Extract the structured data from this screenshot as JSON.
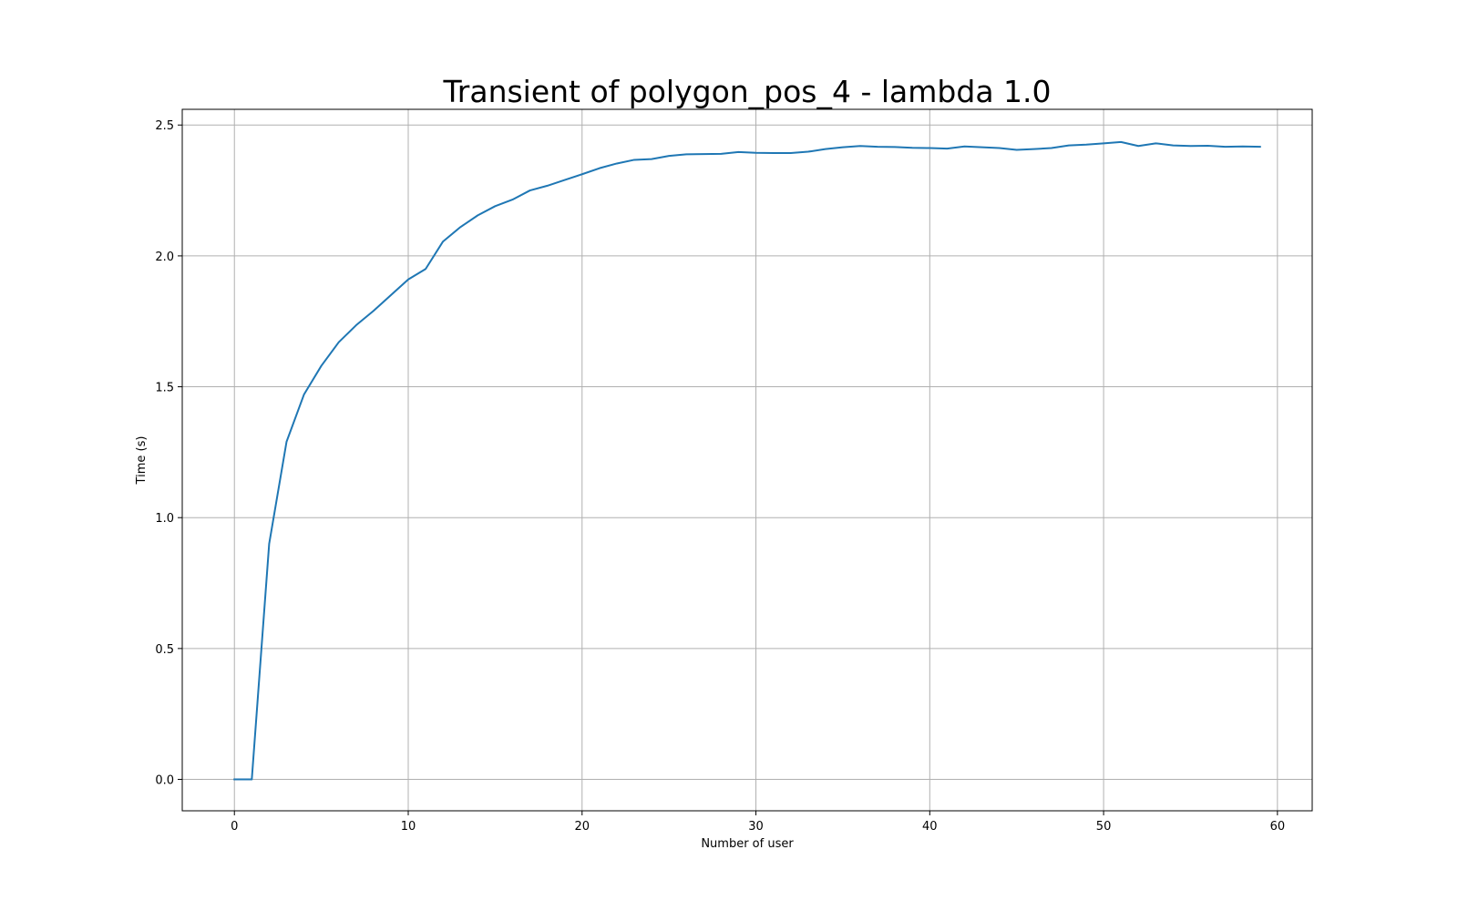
{
  "chart_data": {
    "type": "line",
    "title": "Transient of polygon_pos_4 - lambda 1.0",
    "xlabel": "Number of user",
    "ylabel": "Time (s)",
    "xlim": [
      -3,
      62
    ],
    "ylim": [
      -0.12,
      2.56
    ],
    "xticks": [
      0,
      10,
      20,
      30,
      40,
      50,
      60
    ],
    "yticks": [
      0.0,
      0.5,
      1.0,
      1.5,
      2.0,
      2.5
    ],
    "xtick_labels": [
      "0",
      "10",
      "20",
      "30",
      "40",
      "50",
      "60"
    ],
    "ytick_labels": [
      "0.0",
      "0.5",
      "1.0",
      "1.5",
      "2.0",
      "2.5"
    ],
    "grid": true,
    "series": [
      {
        "color": "#1f77b4",
        "x": [
          0,
          1,
          2,
          3,
          4,
          5,
          6,
          7,
          8,
          9,
          10,
          11,
          12,
          13,
          14,
          15,
          16,
          17,
          18,
          19,
          20,
          21,
          22,
          23,
          24,
          25,
          26,
          27,
          28,
          29,
          30,
          31,
          32,
          33,
          34,
          35,
          36,
          37,
          38,
          39,
          40,
          41,
          42,
          43,
          44,
          45,
          46,
          47,
          48,
          49,
          50,
          51,
          52,
          53,
          54,
          55,
          56,
          57,
          58,
          59
        ],
        "y": [
          0.0,
          0.0,
          0.9,
          1.29,
          1.47,
          1.58,
          1.67,
          1.735,
          1.79,
          1.85,
          1.91,
          1.95,
          2.055,
          2.11,
          2.155,
          2.19,
          2.215,
          2.25,
          2.268,
          2.29,
          2.312,
          2.335,
          2.353,
          2.367,
          2.37,
          2.382,
          2.388,
          2.389,
          2.39,
          2.397,
          2.394,
          2.393,
          2.393,
          2.398,
          2.408,
          2.415,
          2.42,
          2.417,
          2.416,
          2.413,
          2.412,
          2.41,
          2.418,
          2.415,
          2.412,
          2.405,
          2.408,
          2.412,
          2.422,
          2.425,
          2.43,
          2.435,
          2.42,
          2.43,
          2.422,
          2.42,
          2.421,
          2.417,
          2.418,
          2.417
        ]
      }
    ]
  }
}
